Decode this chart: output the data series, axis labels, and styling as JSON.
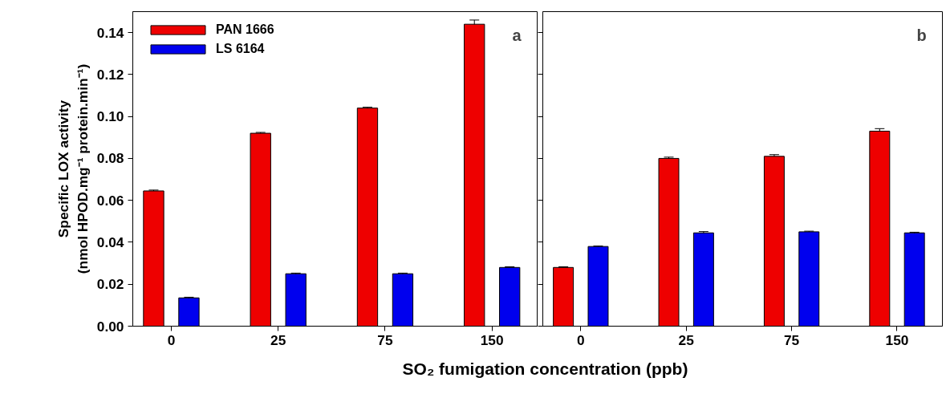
{
  "chart_data": [
    {
      "type": "bar",
      "categories": [
        "0",
        "25",
        "75",
        "150"
      ],
      "ylabel": "Specific LOX activity\n(nmol HPOD.mg⁻¹ protein.min⁻¹)",
      "xlabel": "SO₂ fumigation concentration (ppb)",
      "ylim": [
        0,
        0.15
      ],
      "yticks": [
        {
          "value": 0,
          "label": "0.00"
        },
        0.02,
        0.04,
        0.06,
        0.08,
        {
          "value": 0.1,
          "label": "0.10"
        },
        0.12,
        0.14
      ],
      "annotations": [
        "a"
      ],
      "legend": "top left",
      "grid": false,
      "series": [
        {
          "name": "PAN 1666",
          "color": "#ee0000",
          "values": [
            0.0645,
            0.092,
            0.104,
            0.144
          ],
          "errors": [
            0.0004,
            0.0004,
            0.0004,
            0.002
          ]
        },
        {
          "name": "LS 6164",
          "color": "#0000ee",
          "values": [
            0.0135,
            0.025,
            0.025,
            0.028
          ],
          "errors": [
            0.0003,
            0.0003,
            0.0003,
            0.0003
          ]
        }
      ]
    },
    {
      "type": "bar",
      "categories": [
        "0",
        "25",
        "75",
        "150"
      ],
      "ylim": [
        0,
        0.15
      ],
      "yticks": [
        0,
        0.02,
        0.04,
        0.06,
        0.08,
        0.1,
        0.12,
        0.14
      ],
      "tick_labels": "x",
      "annotations": [
        "b"
      ],
      "grid": false,
      "series": [
        {
          "color": "#ee0000",
          "values": [
            0.028,
            0.08,
            0.081,
            0.093
          ],
          "errors": [
            0.0003,
            0.0006,
            0.0008,
            0.0012
          ]
        },
        {
          "color": "#0000ee",
          "values": [
            0.038,
            0.0445,
            0.045,
            0.0445
          ],
          "errors": [
            0.0002,
            0.0006,
            0.0003,
            0.0003
          ]
        }
      ]
    }
  ]
}
